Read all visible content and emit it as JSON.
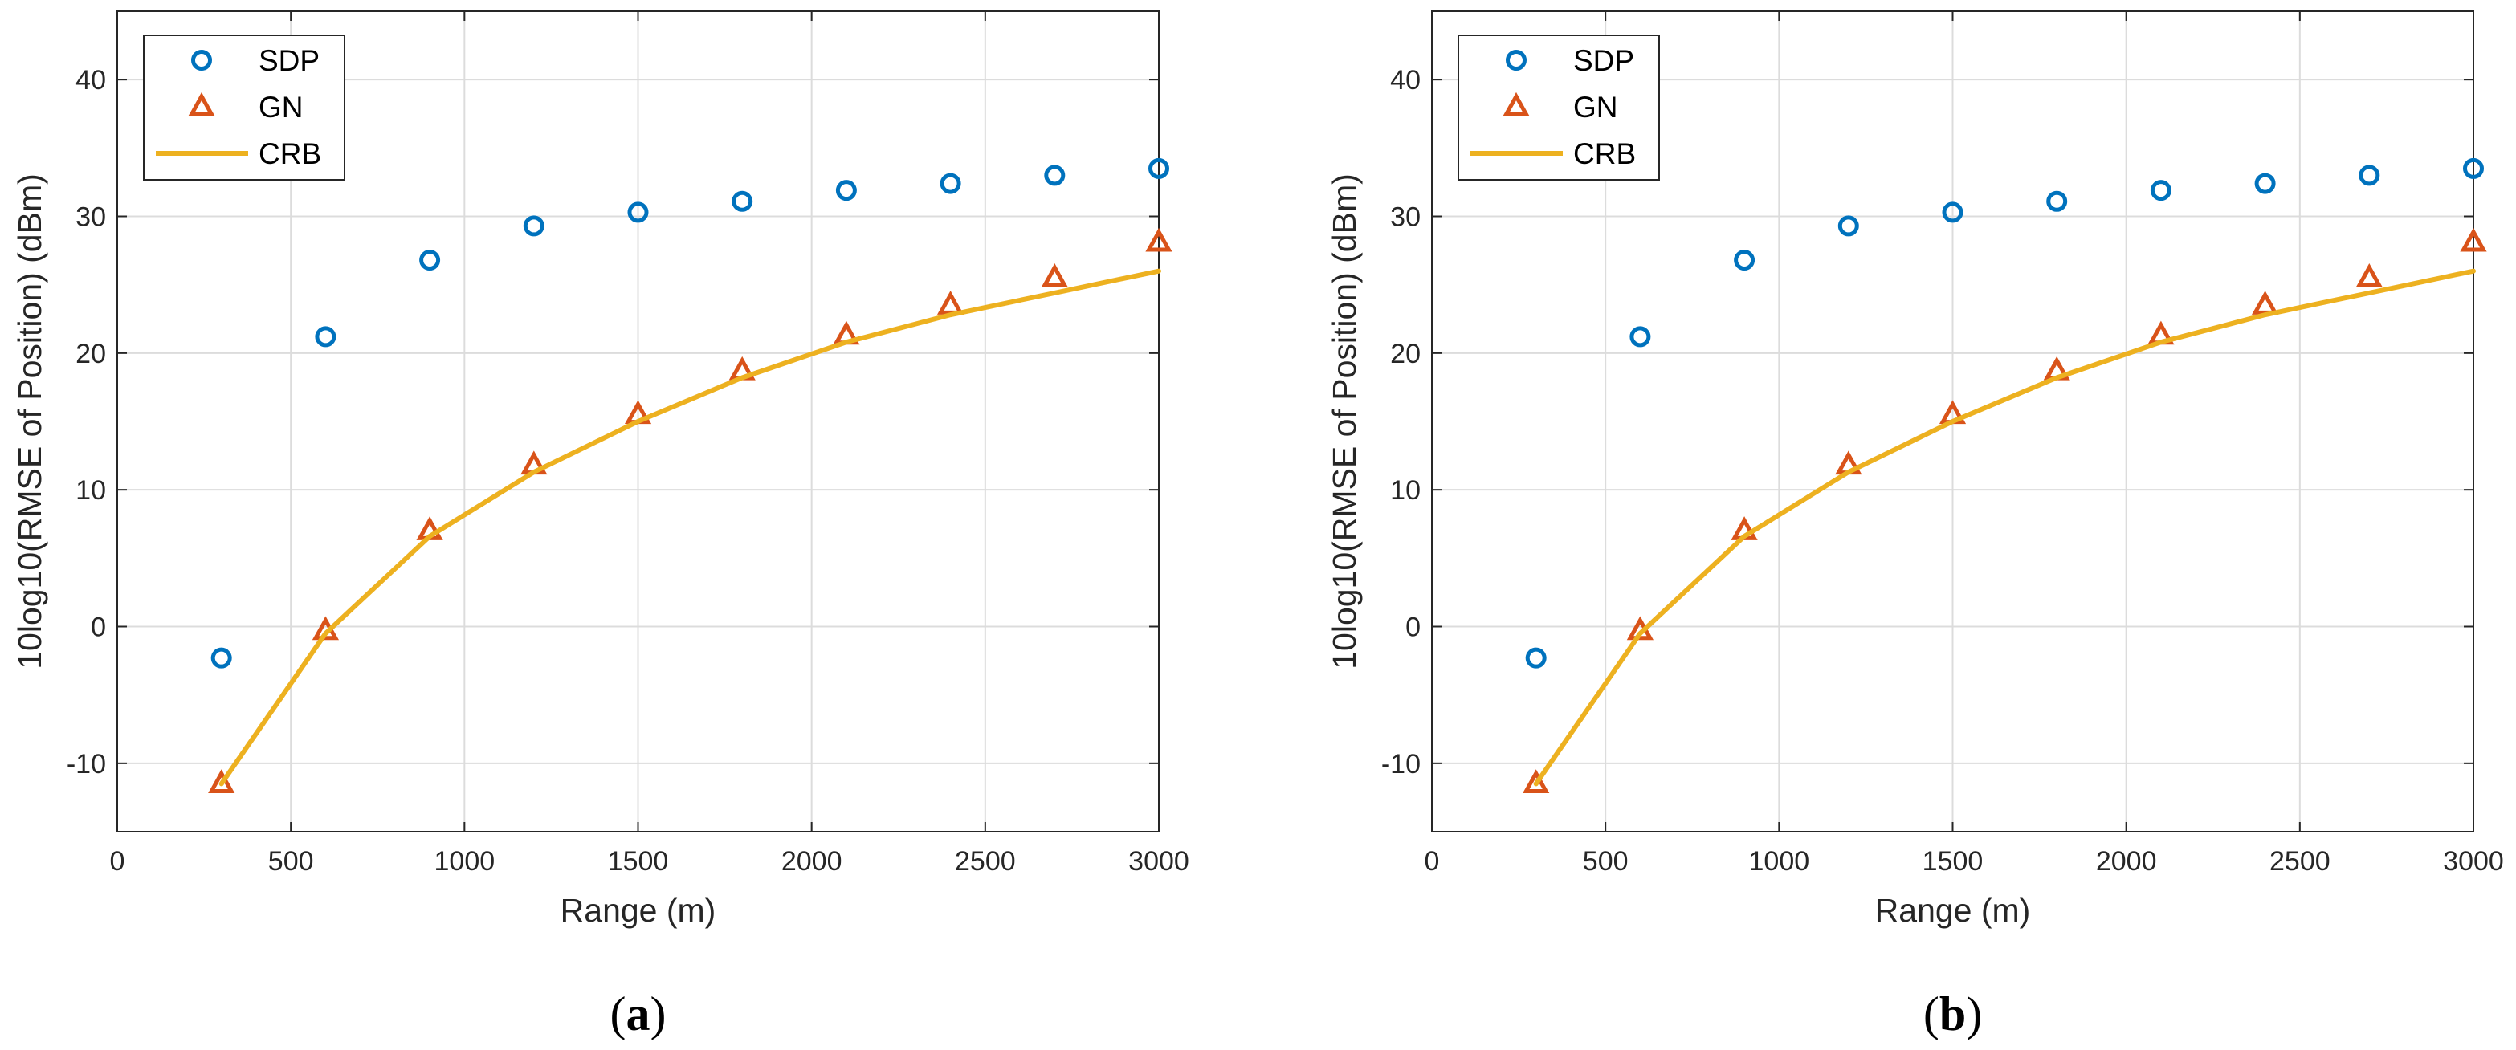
{
  "chart_data": [
    {
      "type": "scatter",
      "caption": "a",
      "title": "",
      "xlabel": "Range (m)",
      "ylabel": "10log10(RMSE of Position) (dBm)",
      "xlim": [
        0,
        3000
      ],
      "ylim": [
        -15,
        45
      ],
      "xticks": [
        0,
        500,
        1000,
        1500,
        2000,
        2500,
        3000
      ],
      "yticks": [
        -10,
        0,
        10,
        20,
        30,
        40
      ],
      "grid": true,
      "legend_position": "top-left",
      "x": [
        300,
        600,
        900,
        1200,
        1500,
        1800,
        2100,
        2400,
        2700,
        3000
      ],
      "series": [
        {
          "name": "SDP",
          "marker": "circle",
          "color": "#0072BD",
          "values": [
            -2.3,
            21.2,
            26.8,
            29.3,
            30.3,
            31.1,
            31.9,
            32.4,
            33.0,
            33.5
          ]
        },
        {
          "name": "GN",
          "marker": "triangle",
          "color": "#D95319",
          "values": [
            -11.5,
            -0.3,
            7.0,
            11.8,
            15.5,
            18.7,
            21.3,
            23.5,
            25.5,
            28.1
          ]
        },
        {
          "name": "CRB",
          "marker": "line",
          "color": "#EDB120",
          "values": [
            -11.5,
            -0.5,
            6.6,
            11.3,
            15.0,
            18.2,
            20.8,
            22.8,
            24.4,
            26.0
          ]
        }
      ]
    },
    {
      "type": "scatter",
      "caption": "b",
      "title": "",
      "xlabel": "Range (m)",
      "ylabel": "10log10(RMSE of Position) (dBm)",
      "xlim": [
        0,
        3000
      ],
      "ylim": [
        -15,
        45
      ],
      "xticks": [
        0,
        500,
        1000,
        1500,
        2000,
        2500,
        3000
      ],
      "yticks": [
        -10,
        0,
        10,
        20,
        30,
        40
      ],
      "grid": true,
      "legend_position": "top-left",
      "x": [
        300,
        600,
        900,
        1200,
        1500,
        1800,
        2100,
        2400,
        2700,
        3000
      ],
      "series": [
        {
          "name": "SDP",
          "marker": "circle",
          "color": "#0072BD",
          "values": [
            -2.3,
            21.2,
            26.8,
            29.3,
            30.3,
            31.1,
            31.9,
            32.4,
            33.0,
            33.5
          ]
        },
        {
          "name": "GN",
          "marker": "triangle",
          "color": "#D95319",
          "values": [
            -11.5,
            -0.3,
            7.0,
            11.8,
            15.5,
            18.7,
            21.3,
            23.5,
            25.5,
            28.1
          ]
        },
        {
          "name": "CRB",
          "marker": "line",
          "color": "#EDB120",
          "values": [
            -11.5,
            -0.5,
            6.6,
            11.3,
            15.0,
            18.2,
            20.8,
            22.8,
            24.4,
            26.0
          ]
        }
      ]
    }
  ]
}
